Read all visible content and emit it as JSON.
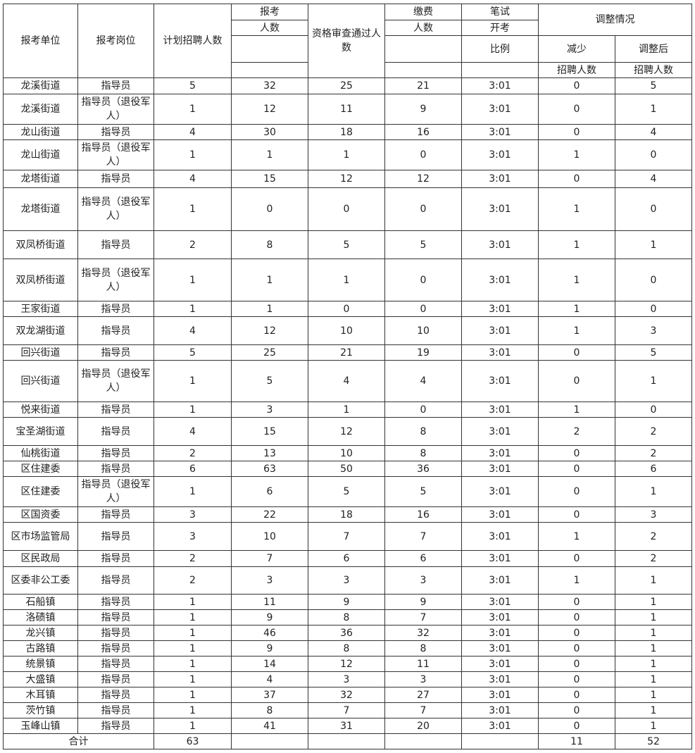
{
  "header": {
    "unit": "报考单位",
    "post": "报考岗位",
    "plan": "计划招聘人数",
    "apply_1": "报考",
    "apply_2": "人数",
    "qualified": "资格审查通过人数",
    "paid_1": "缴费",
    "paid_2": "人数",
    "ratio_1": "笔试",
    "ratio_2": "开考",
    "ratio_3": "比例",
    "adjust": "调整情况",
    "reduce_1": "减少",
    "reduce_2": "招聘人数",
    "after_1": "调整后",
    "after_2": "招聘人数"
  },
  "rows": [
    [
      "龙溪街道",
      "指导员",
      "5",
      "32",
      "25",
      "21",
      "3:01",
      "0",
      "5"
    ],
    [
      "龙溪街道",
      "指导员（退役军人）",
      "1",
      "12",
      "11",
      "9",
      "3:01",
      "0",
      "1"
    ],
    [
      "龙山街道",
      "指导员",
      "4",
      "30",
      "18",
      "16",
      "3:01",
      "0",
      "4"
    ],
    [
      "龙山街道",
      "指导员（退役军人）",
      "1",
      "1",
      "1",
      "0",
      "3:01",
      "1",
      "0"
    ],
    [
      "龙塔街道",
      "指导员",
      "4",
      "15",
      "12",
      "12",
      "3:01",
      "0",
      "4"
    ],
    [
      "龙塔街道",
      "指导员（退役军人）",
      "1",
      "0",
      "0",
      "0",
      "3:01",
      "1",
      "0"
    ],
    [
      "双凤桥街道",
      "指导员",
      "2",
      "8",
      "5",
      "5",
      "3:01",
      "1",
      "1"
    ],
    [
      "双凤桥街道",
      "指导员（退役军人）",
      "1",
      "1",
      "1",
      "0",
      "3:01",
      "1",
      "0"
    ],
    [
      "王家街道",
      "指导员",
      "1",
      "1",
      "0",
      "0",
      "3:01",
      "1",
      "0"
    ],
    [
      "双龙湖街道",
      "指导员",
      "4",
      "12",
      "10",
      "10",
      "3:01",
      "1",
      "3"
    ],
    [
      "回兴街道",
      "指导员",
      "5",
      "25",
      "21",
      "19",
      "3:01",
      "0",
      "5"
    ],
    [
      "回兴街道",
      "指导员（退役军人）",
      "1",
      "5",
      "4",
      "4",
      "3:01",
      "0",
      "1"
    ],
    [
      "悦来街道",
      "指导员",
      "1",
      "3",
      "1",
      "0",
      "3:01",
      "1",
      "0"
    ],
    [
      "宝圣湖街道",
      "指导员",
      "4",
      "15",
      "12",
      "8",
      "3:01",
      "2",
      "2"
    ],
    [
      "仙桃街道",
      "指导员",
      "2",
      "13",
      "10",
      "8",
      "3:01",
      "0",
      "2"
    ],
    [
      "区住建委",
      "指导员",
      "6",
      "63",
      "50",
      "36",
      "3:01",
      "0",
      "6"
    ],
    [
      "区住建委",
      "指导员（退役军人）",
      "1",
      "6",
      "5",
      "5",
      "3:01",
      "0",
      "1"
    ],
    [
      "区国资委",
      "指导员",
      "3",
      "22",
      "18",
      "16",
      "3:01",
      "0",
      "3"
    ],
    [
      "区市场监管局",
      "指导员",
      "3",
      "10",
      "7",
      "7",
      "3:01",
      "1",
      "2"
    ],
    [
      "区民政局",
      "指导员",
      "2",
      "7",
      "6",
      "6",
      "3:01",
      "0",
      "2"
    ],
    [
      "区委非公工委",
      "指导员",
      "2",
      "3",
      "3",
      "3",
      "3:01",
      "1",
      "1"
    ],
    [
      "石船镇",
      "指导员",
      "1",
      "11",
      "9",
      "9",
      "3:01",
      "0",
      "1"
    ],
    [
      "洛碛镇",
      "指导员",
      "1",
      "9",
      "8",
      "7",
      "3:01",
      "0",
      "1"
    ],
    [
      "龙兴镇",
      "指导员",
      "1",
      "46",
      "36",
      "32",
      "3:01",
      "0",
      "1"
    ],
    [
      "古路镇",
      "指导员",
      "1",
      "9",
      "8",
      "8",
      "3:01",
      "0",
      "1"
    ],
    [
      "统景镇",
      "指导员",
      "1",
      "14",
      "12",
      "11",
      "3:01",
      "0",
      "1"
    ],
    [
      "大盛镇",
      "指导员",
      "1",
      "4",
      "3",
      "3",
      "3:01",
      "0",
      "1"
    ],
    [
      "木耳镇",
      "指导员",
      "1",
      "37",
      "32",
      "27",
      "3:01",
      "0",
      "1"
    ],
    [
      "茨竹镇",
      "指导员",
      "1",
      "8",
      "7",
      "7",
      "3:01",
      "0",
      "1"
    ],
    [
      "玉峰山镇",
      "指导员",
      "1",
      "41",
      "31",
      "20",
      "3:01",
      "0",
      "1"
    ]
  ],
  "total": {
    "label": "合计",
    "plan": "63",
    "apply": "",
    "qualified": "",
    "paid": "",
    "ratio": "",
    "reduce": "11",
    "after": "52"
  }
}
